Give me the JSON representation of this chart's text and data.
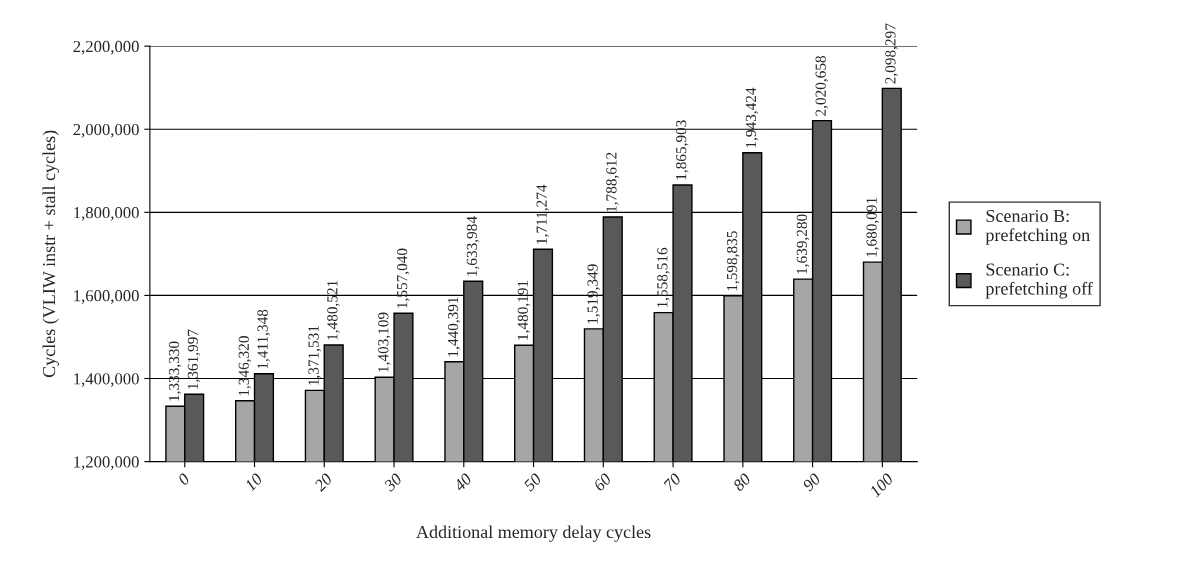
{
  "chart_data": {
    "type": "bar",
    "xlabel": "Additional memory delay cycles",
    "ylabel": "Cycles (VLIW instr + stall cycles)",
    "categories": [
      "0",
      "10",
      "20",
      "30",
      "40",
      "50",
      "60",
      "70",
      "80",
      "90",
      "100"
    ],
    "series": [
      {
        "name": "Scenario B:\nprefetching on",
        "color": "#a6a6a6",
        "values": [
          1333330,
          1346320,
          1371531,
          1403109,
          1440391,
          1480191,
          1519349,
          1558516,
          1598835,
          1639280,
          1680091
        ],
        "value_labels": [
          "1,333,330",
          "1,346,320",
          "1,371,531",
          "1,403,109",
          "1,440,391",
          "1,480,191",
          "1,519,349",
          "1,558,516",
          "1,598,835",
          "1,639,280",
          "1,680,091"
        ]
      },
      {
        "name": "Scenario C:\nprefetching off",
        "color": "#595959",
        "values": [
          1361997,
          1411348,
          1480521,
          1557040,
          1633984,
          1711274,
          1788612,
          1865903,
          1943424,
          2020658,
          2098297
        ],
        "value_labels": [
          "1,361,997",
          "1,411,348",
          "1,480,521",
          "1,557,040",
          "1,633,984",
          "1,711,274",
          "1,788,612",
          "1,865,903",
          "1,943,424",
          "2,020,658",
          "2,098,297"
        ]
      }
    ],
    "ylim": [
      1200000,
      2200000
    ],
    "yticks": [
      {
        "value": 1200000,
        "label": "1,200,000"
      },
      {
        "value": 1400000,
        "label": "1,400,000"
      },
      {
        "value": 1600000,
        "label": "1,600,000"
      },
      {
        "value": 1800000,
        "label": "1,800,000"
      },
      {
        "value": 2000000,
        "label": "2,000,000"
      },
      {
        "value": 2200000,
        "label": "2,200,000"
      }
    ],
    "grid": "y",
    "legend": "right"
  }
}
